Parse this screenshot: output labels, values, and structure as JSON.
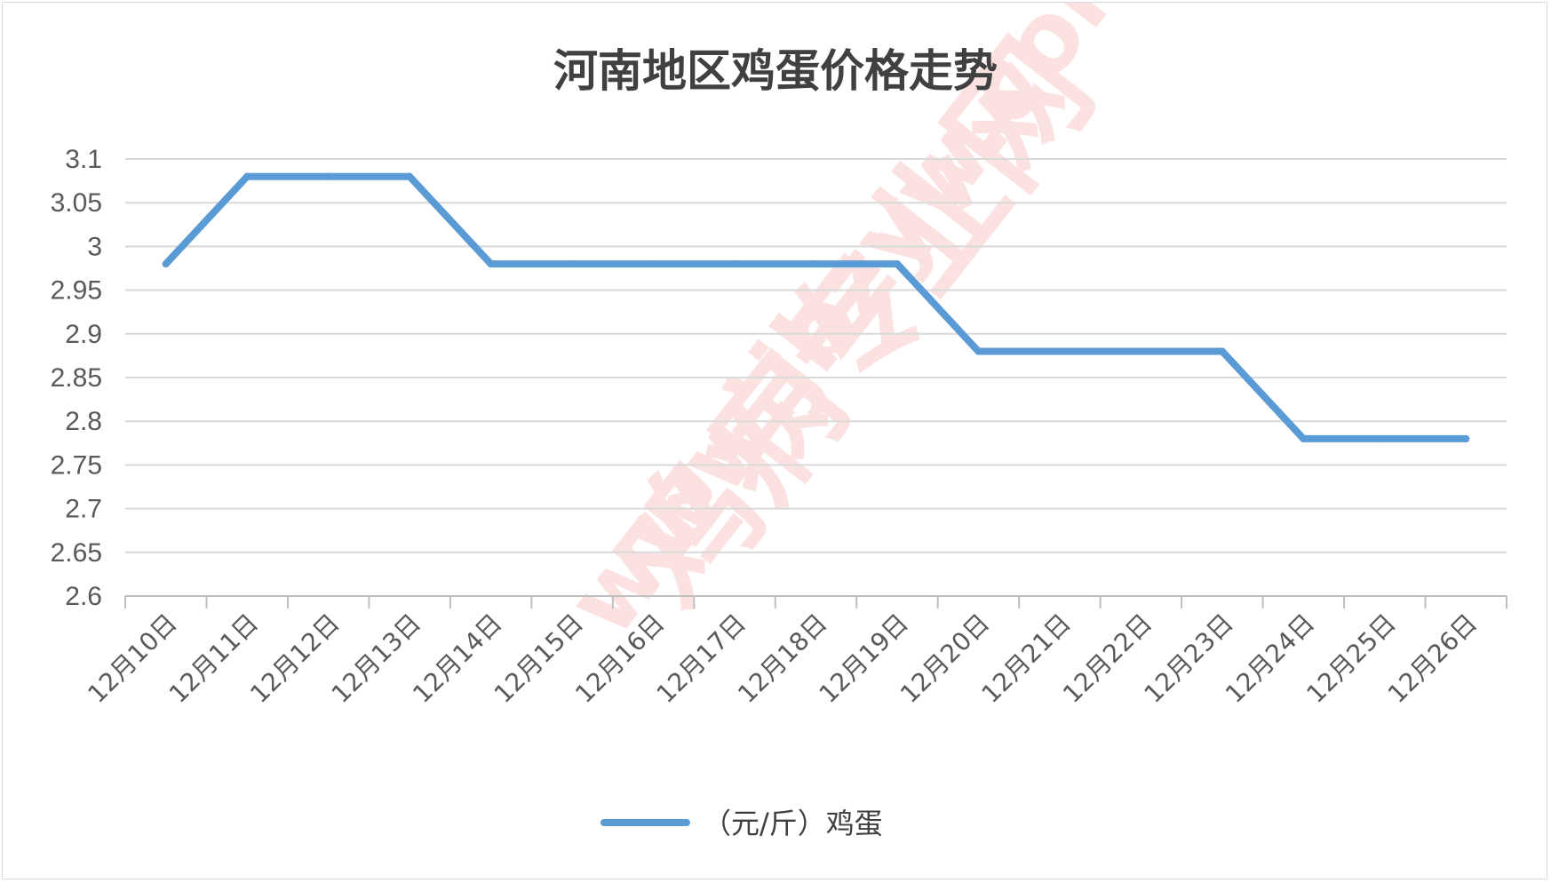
{
  "watermark": {
    "text": "鸡病专业网",
    "url": "www.jbzyw.com",
    "color": "#e53935"
  },
  "legend": {
    "position": "bottom"
  },
  "chart_data": {
    "type": "line",
    "title": "河南地区鸡蛋价格走势",
    "xlabel": "",
    "ylabel": "",
    "categories": [
      "12月10日",
      "12月11日",
      "12月12日",
      "12月13日",
      "12月14日",
      "12月15日",
      "12月16日",
      "12月17日",
      "12月18日",
      "12月19日",
      "12月20日",
      "12月21日",
      "12月22日",
      "12月23日",
      "12月24日",
      "12月25日",
      "12月26日"
    ],
    "series": [
      {
        "name": "（元/斤）鸡蛋",
        "color": "#5b9bd5",
        "values": [
          2.98,
          3.08,
          3.08,
          3.08,
          2.98,
          2.98,
          2.98,
          2.98,
          2.98,
          2.98,
          2.88,
          2.88,
          2.88,
          2.88,
          2.78,
          2.78,
          2.78
        ]
      }
    ],
    "ylim": [
      2.6,
      3.1
    ],
    "yticks": [
      "3.1",
      "3.05",
      "3",
      "2.95",
      "2.9",
      "2.85",
      "2.8",
      "2.75",
      "2.7",
      "2.65",
      "2.6"
    ],
    "grid": true,
    "gridColor": "#d9d9d9",
    "axisColor": "#bfbfbf"
  }
}
